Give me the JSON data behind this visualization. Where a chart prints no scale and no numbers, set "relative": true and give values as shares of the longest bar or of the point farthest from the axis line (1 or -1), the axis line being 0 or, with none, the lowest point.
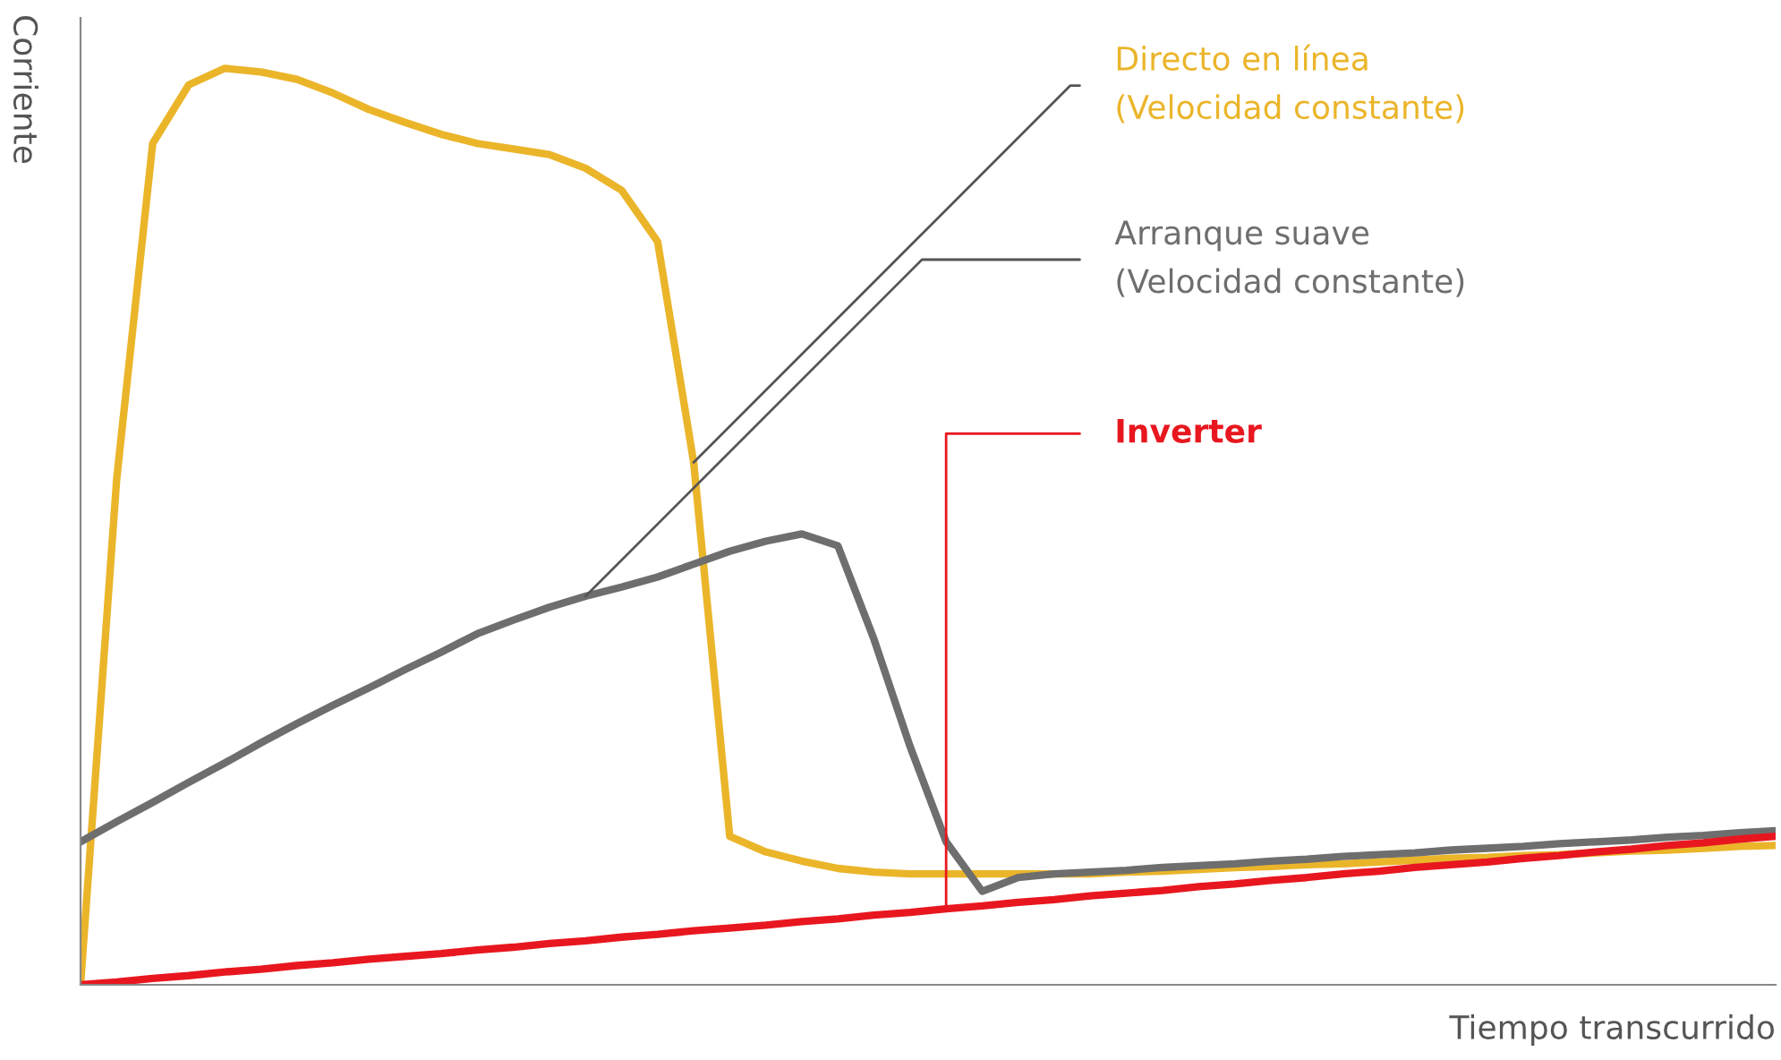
{
  "chart_data": {
    "type": "line",
    "relative": true,
    "xlabel": "Tiempo transcurrido",
    "ylabel": "Corriente",
    "legend": false,
    "marker": "none",
    "line_style": "solid",
    "categories": [
      null,
      null,
      null,
      null,
      null,
      null,
      null,
      null,
      null,
      null,
      null,
      null,
      null,
      null,
      null,
      null,
      null,
      null,
      null,
      null,
      null,
      null,
      null,
      null,
      null,
      null,
      null,
      null,
      null,
      null,
      null,
      null,
      null,
      null,
      null,
      null,
      null,
      null,
      null,
      null,
      null,
      null,
      null,
      null,
      null,
      null,
      null,
      null
    ],
    "series": [
      {
        "name": "Directo en línea\n(Velocidad constante)",
        "color": "#ebb52a",
        "values": [
          0,
          0.551,
          0.918,
          0.982,
          1,
          0.996,
          0.988,
          0.973,
          0.955,
          0.941,
          0.928,
          0.918,
          0.912,
          0.906,
          0.891,
          0.867,
          0.811,
          0.57,
          0.162,
          0.145,
          0.135,
          0.127,
          0.123,
          0.121,
          0.121,
          0.121,
          0.121,
          0.121,
          0.121,
          0.123,
          0.124,
          0.126,
          0.128,
          0.129,
          0.131,
          0.132,
          0.134,
          0.136,
          0.138,
          0.139,
          0.141,
          0.142,
          0.144,
          0.146,
          0.147,
          0.149,
          0.151,
          0.152
        ]
      },
      {
        "name": "Arranque suave\n(Velocidad constante)",
        "color": "#6e6e6e",
        "values": [
          0.156,
          0.178,
          0.199,
          0.221,
          0.242,
          0.264,
          0.285,
          0.305,
          0.324,
          0.344,
          0.363,
          0.383,
          0.398,
          0.412,
          0.424,
          0.434,
          0.445,
          0.459,
          0.473,
          0.484,
          0.492,
          0.479,
          0.377,
          0.26,
          0.156,
          0.102,
          0.117,
          0.121,
          0.123,
          0.125,
          0.128,
          0.13,
          0.132,
          0.135,
          0.137,
          0.14,
          0.142,
          0.144,
          0.147,
          0.149,
          0.151,
          0.154,
          0.156,
          0.158,
          0.161,
          0.163,
          0.166,
          0.168
        ]
      },
      {
        "name": "Inverter",
        "color": "#e8171f",
        "values": [
          0,
          0.003,
          0.007,
          0.01,
          0.014,
          0.017,
          0.021,
          0.024,
          0.028,
          0.031,
          0.034,
          0.038,
          0.041,
          0.045,
          0.048,
          0.052,
          0.055,
          0.059,
          0.062,
          0.065,
          0.069,
          0.072,
          0.076,
          0.079,
          0.083,
          0.086,
          0.09,
          0.093,
          0.097,
          0.1,
          0.103,
          0.107,
          0.11,
          0.114,
          0.117,
          0.121,
          0.124,
          0.128,
          0.131,
          0.134,
          0.138,
          0.141,
          0.145,
          0.148,
          0.152,
          0.155,
          0.159,
          0.162
        ]
      }
    ]
  }
}
